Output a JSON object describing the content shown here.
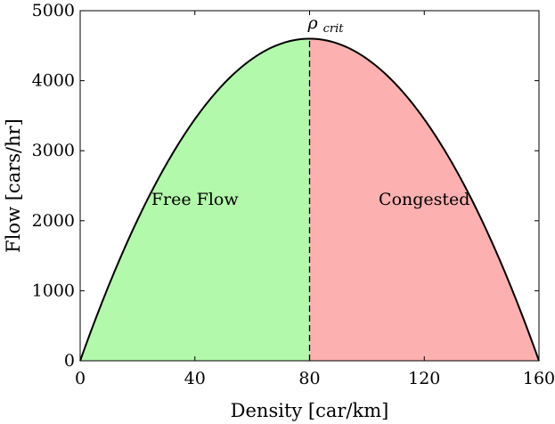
{
  "chart_data": {
    "type": "area",
    "xlabel": "Density [car/km]",
    "ylabel": "Flow [cars/hr]",
    "xlim": [
      0,
      160
    ],
    "ylim": [
      0,
      5000
    ],
    "xticks": [
      0,
      40,
      80,
      120,
      160
    ],
    "yticks": [
      0,
      1000,
      2000,
      3000,
      4000,
      5000
    ],
    "grid": false,
    "curve": {
      "shape": "parabola",
      "x": [
        0,
        20,
        40,
        60,
        80,
        100,
        120,
        140,
        160
      ],
      "y": [
        0,
        2012,
        3450,
        4312,
        4600,
        4312,
        3450,
        2012,
        0
      ]
    },
    "critical_density": 80,
    "critical_label": {
      "base": "ρ",
      "subscript": "crit"
    },
    "regions": [
      {
        "label": "Free Flow",
        "x_range": [
          0,
          80
        ],
        "color": "#b3f9ab",
        "label_at": [
          40,
          2300
        ]
      },
      {
        "label": "Congested",
        "x_range": [
          80,
          160
        ],
        "color": "#fcb0b0",
        "label_at": [
          120,
          2300
        ]
      }
    ],
    "line_color": "#000000"
  }
}
